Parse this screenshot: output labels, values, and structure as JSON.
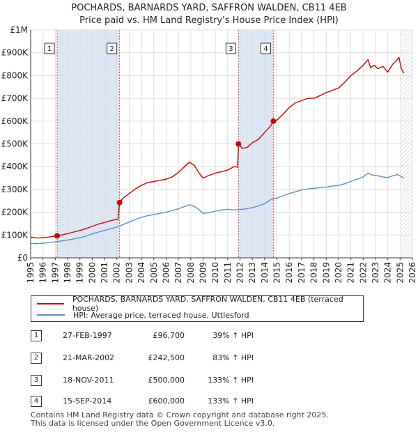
{
  "chart_data": {
    "type": "line",
    "title": "POCHARDS, BARNARDS YARD, SAFFRON WALDEN, CB11 4EB",
    "subtitle": "Price paid vs. HM Land Registry's House Price Index (HPI)",
    "xlim": [
      1995,
      2026
    ],
    "ylim": [
      0,
      1000000
    ],
    "xticks": [
      1995,
      1996,
      1997,
      1998,
      1999,
      2000,
      2001,
      2002,
      2003,
      2004,
      2005,
      2006,
      2007,
      2008,
      2009,
      2010,
      2011,
      2012,
      2013,
      2014,
      2015,
      2016,
      2017,
      2018,
      2019,
      2020,
      2021,
      2022,
      2023,
      2024,
      2025,
      2026
    ],
    "yticks": [
      {
        "value": 0,
        "label": "£0"
      },
      {
        "value": 100000,
        "label": "£100K"
      },
      {
        "value": 200000,
        "label": "£200K"
      },
      {
        "value": 300000,
        "label": "£300K"
      },
      {
        "value": 400000,
        "label": "£400K"
      },
      {
        "value": 500000,
        "label": "£500K"
      },
      {
        "value": 600000,
        "label": "£600K"
      },
      {
        "value": 700000,
        "label": "£700K"
      },
      {
        "value": 800000,
        "label": "£800K"
      },
      {
        "value": 900000,
        "label": "£900K"
      },
      {
        "value": 1000000,
        "label": "£1M"
      }
    ],
    "grid": true,
    "shaded_ranges": [
      [
        1997.15,
        2002.22
      ],
      [
        2011.88,
        2014.71
      ]
    ],
    "future_hatch_from": 2025.1,
    "colors": {
      "property": "#cc0000",
      "hpi": "#5b8ccc",
      "shade": "#dce6f4",
      "marker": "#cc0000"
    },
    "series": [
      {
        "name": "POCHARDS, BARNARDS YARD, SAFFRON WALDEN, CB11 4EB (terraced house)",
        "color": "#cc0000",
        "x": [
          1995.0,
          1995.5,
          1996.0,
          1996.5,
          1997.15,
          1997.5,
          1998.0,
          1998.5,
          1999.0,
          1999.5,
          2000.0,
          2000.5,
          2001.0,
          2001.5,
          2002.1,
          2002.22,
          2002.5,
          2003.0,
          2003.5,
          2004.0,
          2004.5,
          2005.0,
          2005.5,
          2006.0,
          2006.5,
          2007.0,
          2007.5,
          2007.9,
          2008.3,
          2008.7,
          2009.0,
          2009.5,
          2010.0,
          2010.5,
          2011.0,
          2011.5,
          2011.8,
          2011.88,
          2012.2,
          2012.6,
          2013.0,
          2013.5,
          2014.0,
          2014.5,
          2014.71,
          2015.0,
          2015.5,
          2016.0,
          2016.5,
          2017.0,
          2017.5,
          2018.0,
          2018.5,
          2019.0,
          2019.5,
          2020.0,
          2020.5,
          2021.0,
          2021.5,
          2022.0,
          2022.4,
          2022.6,
          2022.9,
          2023.2,
          2023.6,
          2024.0,
          2024.4,
          2024.7,
          2024.9,
          2025.1,
          2025.3
        ],
        "y": [
          91000,
          87000,
          88000,
          91000,
          96700,
          100000,
          106000,
          113000,
          120000,
          128000,
          138000,
          148000,
          155000,
          163000,
          170000,
          242500,
          262000,
          282000,
          302000,
          318000,
          330000,
          335000,
          340000,
          345000,
          355000,
          375000,
          400000,
          420000,
          405000,
          370000,
          350000,
          362000,
          372000,
          378000,
          385000,
          400000,
          398000,
          500000,
          480000,
          485000,
          505000,
          520000,
          550000,
          580000,
          600000,
          605000,
          630000,
          660000,
          680000,
          690000,
          700000,
          700000,
          712000,
          725000,
          735000,
          745000,
          770000,
          800000,
          820000,
          845000,
          870000,
          835000,
          845000,
          830000,
          840000,
          815000,
          850000,
          865000,
          880000,
          830000,
          810000
        ]
      },
      {
        "name": "HPI: Average price, terraced house, Uttlesford",
        "color": "#5b8ccc",
        "x": [
          1995.0,
          1995.5,
          1996.0,
          1996.5,
          1997.0,
          1997.5,
          1998.0,
          1998.5,
          1999.0,
          1999.5,
          2000.0,
          2000.5,
          2001.0,
          2001.5,
          2002.0,
          2002.5,
          2003.0,
          2003.5,
          2004.0,
          2004.5,
          2005.0,
          2005.5,
          2006.0,
          2006.5,
          2007.0,
          2007.5,
          2007.9,
          2008.3,
          2008.7,
          2009.0,
          2009.5,
          2010.0,
          2010.5,
          2011.0,
          2011.5,
          2012.0,
          2012.5,
          2013.0,
          2013.5,
          2014.0,
          2014.5,
          2015.0,
          2015.5,
          2016.0,
          2016.5,
          2017.0,
          2017.5,
          2018.0,
          2018.5,
          2019.0,
          2019.5,
          2020.0,
          2020.5,
          2021.0,
          2021.5,
          2022.0,
          2022.4,
          2022.8,
          2023.2,
          2023.6,
          2024.0,
          2024.4,
          2024.8,
          2025.0,
          2025.3
        ],
        "y": [
          63000,
          62000,
          64000,
          67000,
          70000,
          74000,
          78000,
          83000,
          88000,
          95000,
          105000,
          113000,
          120000,
          128000,
          135000,
          146000,
          157000,
          168000,
          178000,
          185000,
          190000,
          195000,
          200000,
          208000,
          215000,
          225000,
          233000,
          226000,
          210000,
          195000,
          198000,
          205000,
          210000,
          213000,
          210000,
          212000,
          215000,
          220000,
          228000,
          238000,
          255000,
          262000,
          272000,
          282000,
          290000,
          298000,
          302000,
          305000,
          308000,
          310000,
          315000,
          318000,
          325000,
          335000,
          345000,
          355000,
          372000,
          362000,
          360000,
          355000,
          352000,
          360000,
          365000,
          360000,
          350000
        ]
      }
    ],
    "markers": [
      {
        "label": "1",
        "x": 1997.15,
        "y": 96700
      },
      {
        "label": "2",
        "x": 2002.22,
        "y": 242500
      },
      {
        "label": "3",
        "x": 2011.88,
        "y": 500000
      },
      {
        "label": "4",
        "x": 2014.71,
        "y": 600000
      }
    ]
  },
  "legend": {
    "property_label": "POCHARDS, BARNARDS YARD, SAFFRON WALDEN, CB11 4EB (terraced house)",
    "hpi_label": "HPI: Average price, terraced house, Uttlesford"
  },
  "sales": [
    {
      "num": "1",
      "date": "27-FEB-1997",
      "price": "£96,700",
      "hpi": "39% ↑ HPI"
    },
    {
      "num": "2",
      "date": "21-MAR-2002",
      "price": "£242,500",
      "hpi": "83% ↑ HPI"
    },
    {
      "num": "3",
      "date": "18-NOV-2011",
      "price": "£500,000",
      "hpi": "133% ↑ HPI"
    },
    {
      "num": "4",
      "date": "15-SEP-2014",
      "price": "£600,000",
      "hpi": "133% ↑ HPI"
    }
  ],
  "footer": {
    "line1": "Contains HM Land Registry data © Crown copyright and database right 2025.",
    "line2": "This data is licensed under the Open Government Licence v3.0."
  }
}
